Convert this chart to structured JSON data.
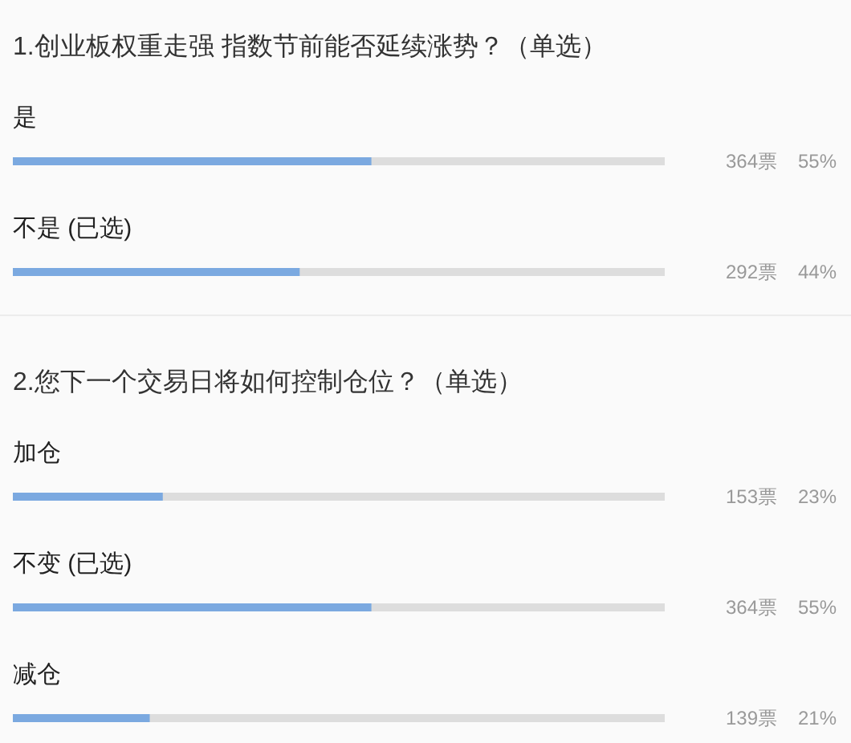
{
  "chart_data": [
    {
      "type": "bar",
      "orientation": "horizontal",
      "title": "1.创业板权重走强 指数节前能否延续涨势？（单选）",
      "categories": [
        "是",
        "不是 (已选)"
      ],
      "values": [
        55,
        44
      ],
      "value_labels": [
        "364票 55%",
        "292票 44%"
      ],
      "color": "#7ba9e0",
      "xlim": [
        0,
        100
      ],
      "tick_labels": "y"
    },
    {
      "type": "bar",
      "orientation": "horizontal",
      "title": "2.您下一个交易日将如何控制仓位？（单选）",
      "categories": [
        "加仓",
        "不变 (已选)",
        "减仓"
      ],
      "values": [
        23,
        55,
        21
      ],
      "value_labels": [
        "153票 23%",
        "364票 55%",
        "139票 21%"
      ],
      "color": "#7ba9e0",
      "xlim": [
        0,
        100
      ],
      "tick_labels": "y"
    }
  ]
}
